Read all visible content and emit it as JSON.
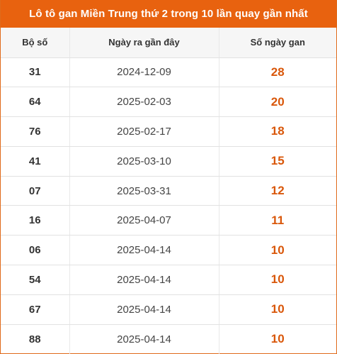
{
  "title": "Lô tô gan Miền Trung thứ 2 trong 10 lần quay gần nhất",
  "headers": [
    "Bộ số",
    "Ngày ra gần đây",
    "Số ngày gan"
  ],
  "colors": {
    "accent": "#e8620f",
    "gan_value": "#d9570a"
  },
  "rows": [
    {
      "number": "31",
      "date": "2024-12-09",
      "days": "28"
    },
    {
      "number": "64",
      "date": "2025-02-03",
      "days": "20"
    },
    {
      "number": "76",
      "date": "2025-02-17",
      "days": "18"
    },
    {
      "number": "41",
      "date": "2025-03-10",
      "days": "15"
    },
    {
      "number": "07",
      "date": "2025-03-31",
      "days": "12"
    },
    {
      "number": "16",
      "date": "2025-04-07",
      "days": "11"
    },
    {
      "number": "06",
      "date": "2025-04-14",
      "days": "10"
    },
    {
      "number": "54",
      "date": "2025-04-14",
      "days": "10"
    },
    {
      "number": "67",
      "date": "2025-04-14",
      "days": "10"
    },
    {
      "number": "88",
      "date": "2025-04-14",
      "days": "10"
    }
  ]
}
